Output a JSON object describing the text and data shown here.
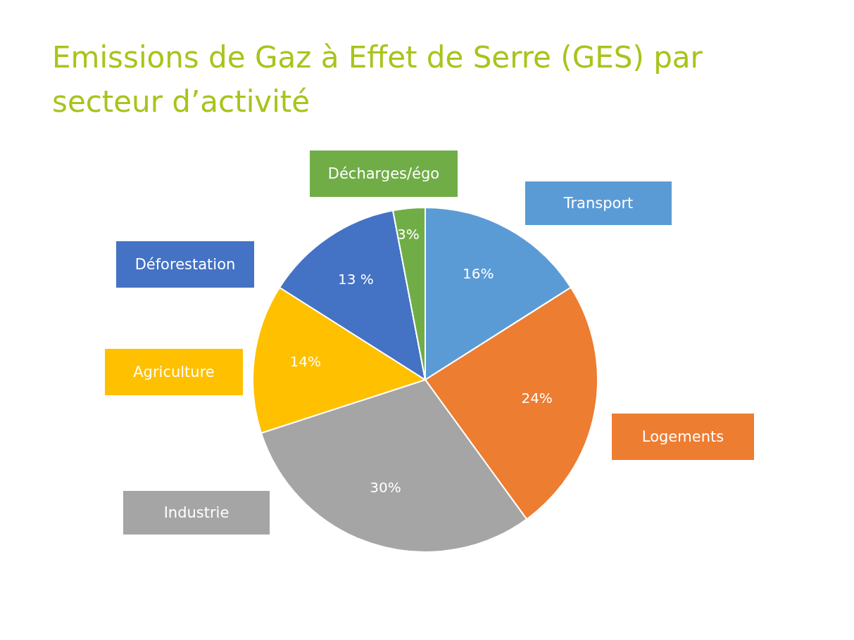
{
  "chart_data": {
    "type": "pie",
    "title": "Emissions de Gaz à Effet de Serre (GES) par secteur d’activité",
    "categories": [
      "Transport",
      "Logements",
      "Industrie",
      "Agriculture",
      "Déforestation",
      "Décharges/égo"
    ],
    "values": [
      16,
      24,
      30,
      14,
      13,
      3
    ],
    "colors": [
      "#5b9bd5",
      "#ed7d31",
      "#a5a5a5",
      "#ffc000",
      "#4472c4",
      "#70ad47"
    ],
    "value_labels": [
      "16%",
      "24%",
      "30%",
      "14%",
      "13 %",
      "3%"
    ]
  }
}
